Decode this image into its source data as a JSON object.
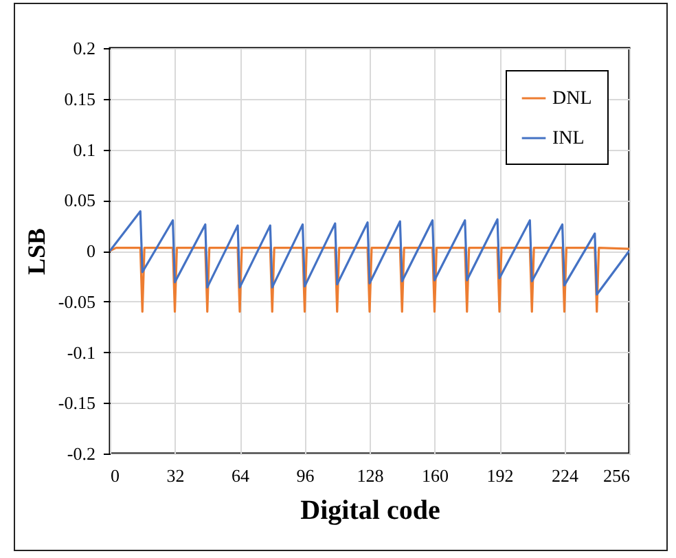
{
  "chart_data": {
    "type": "line",
    "xlabel": "Digital code",
    "ylabel": "LSB",
    "xlim": [
      0,
      256
    ],
    "xticks": [
      0,
      32,
      64,
      96,
      128,
      160,
      192,
      224,
      256
    ],
    "ylim": [
      -0.2,
      0.2
    ],
    "yticks": [
      -0.2,
      -0.15,
      -0.1,
      -0.05,
      0,
      0.05,
      0.1,
      0.15,
      0.2
    ],
    "grid": true,
    "legend": "top right",
    "series": [
      {
        "name": "DNL",
        "color": "#ed7d31",
        "x": [
          0,
          3,
          15,
          16,
          17,
          31,
          32,
          33,
          47,
          48,
          49,
          63,
          64,
          65,
          79,
          80,
          81,
          95,
          96,
          97,
          111,
          112,
          113,
          127,
          128,
          129,
          143,
          144,
          145,
          159,
          160,
          161,
          175,
          176,
          177,
          191,
          192,
          193,
          207,
          208,
          209,
          223,
          224,
          225,
          239,
          240,
          241,
          256
        ],
        "values": [
          0,
          0.003,
          0.003,
          -0.06,
          0.003,
          0.003,
          -0.06,
          0.003,
          0.003,
          -0.06,
          0.003,
          0.003,
          -0.06,
          0.003,
          0.003,
          -0.06,
          0.003,
          0.003,
          -0.06,
          0.003,
          0.003,
          -0.06,
          0.003,
          0.003,
          -0.06,
          0.003,
          0.003,
          -0.06,
          0.003,
          0.003,
          -0.06,
          0.003,
          0.003,
          -0.06,
          0.003,
          0.003,
          -0.06,
          0.003,
          0.003,
          -0.06,
          0.003,
          0.003,
          -0.06,
          0.003,
          0.003,
          -0.06,
          0.003,
          0.002
        ]
      },
      {
        "name": "INL",
        "color": "#4472c4",
        "x": [
          0,
          15,
          16,
          31,
          32,
          47,
          48,
          63,
          64,
          79,
          80,
          95,
          96,
          111,
          112,
          127,
          128,
          143,
          144,
          159,
          160,
          175,
          176,
          191,
          192,
          207,
          208,
          223,
          224,
          239,
          240,
          256
        ],
        "values": [
          0,
          0.039,
          -0.021,
          0.03,
          -0.031,
          0.026,
          -0.036,
          0.025,
          -0.036,
          0.025,
          -0.036,
          0.026,
          -0.035,
          0.027,
          -0.033,
          0.028,
          -0.032,
          0.029,
          -0.03,
          0.03,
          -0.029,
          0.03,
          -0.029,
          0.031,
          -0.027,
          0.03,
          -0.03,
          0.026,
          -0.034,
          0.017,
          -0.043,
          0
        ]
      }
    ]
  }
}
